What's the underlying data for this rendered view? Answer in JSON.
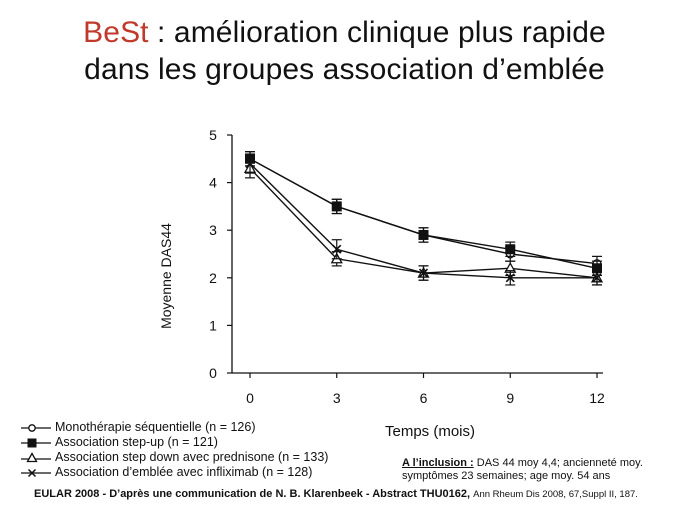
{
  "title": {
    "brand": "BeSt",
    "line1_rest": " : amélioration clinique plus rapide",
    "line2": "dans les groupes association d’emblée"
  },
  "colors": {
    "brand": "#c0392b",
    "ink": "#111111"
  },
  "chart_data": {
    "type": "line",
    "xlabel": "Temps (mois)",
    "ylabel": "Moyenne DAS44",
    "x": [
      0,
      3,
      6,
      9,
      12
    ],
    "x_tick_labels": [
      "0",
      "3",
      "6",
      "9",
      "12"
    ],
    "y_tick_labels": [
      "0",
      "1",
      "2",
      "3",
      "4",
      "5"
    ],
    "ylim": [
      0,
      5
    ],
    "xlim": [
      0,
      12
    ],
    "grid": false,
    "series": [
      {
        "name": "Monothérapie séquentielle (n = 126)",
        "marker": "circle",
        "values": [
          4.5,
          3.5,
          2.9,
          2.5,
          2.3
        ],
        "err": [
          0.15,
          0.15,
          0.15,
          0.15,
          0.15
        ]
      },
      {
        "name": "Association step-up (n = 121)",
        "marker": "square",
        "values": [
          4.5,
          3.5,
          2.9,
          2.6,
          2.2
        ],
        "err": [
          0.15,
          0.15,
          0.15,
          0.15,
          0.15
        ]
      },
      {
        "name": "Association step down avec prednisone (n = 133)",
        "marker": "triangle",
        "values": [
          4.3,
          2.4,
          2.1,
          2.2,
          2.0
        ],
        "err": [
          0.2,
          0.15,
          0.15,
          0.15,
          0.15
        ]
      },
      {
        "name": "Association d’emblée avec infliximab (n = 128)",
        "marker": "cross",
        "values": [
          4.4,
          2.6,
          2.1,
          2.0,
          2.0
        ],
        "err": [
          0.2,
          0.2,
          0.15,
          0.15,
          0.15
        ]
      }
    ]
  },
  "inclusion": {
    "label": "A l’inclusion :",
    "text": " DAS 44 moy 4,4; ancienneté moy. symptômes 23 semaines; age moy. 54 ans"
  },
  "footer": {
    "main": "EULAR 2008 - D’après une communication de N. B. Klarenbeek - Abstract THU0162",
    "sep": ", ",
    "ref": "Ann Rheum Dis 2008, 67,Suppl II, 187."
  }
}
